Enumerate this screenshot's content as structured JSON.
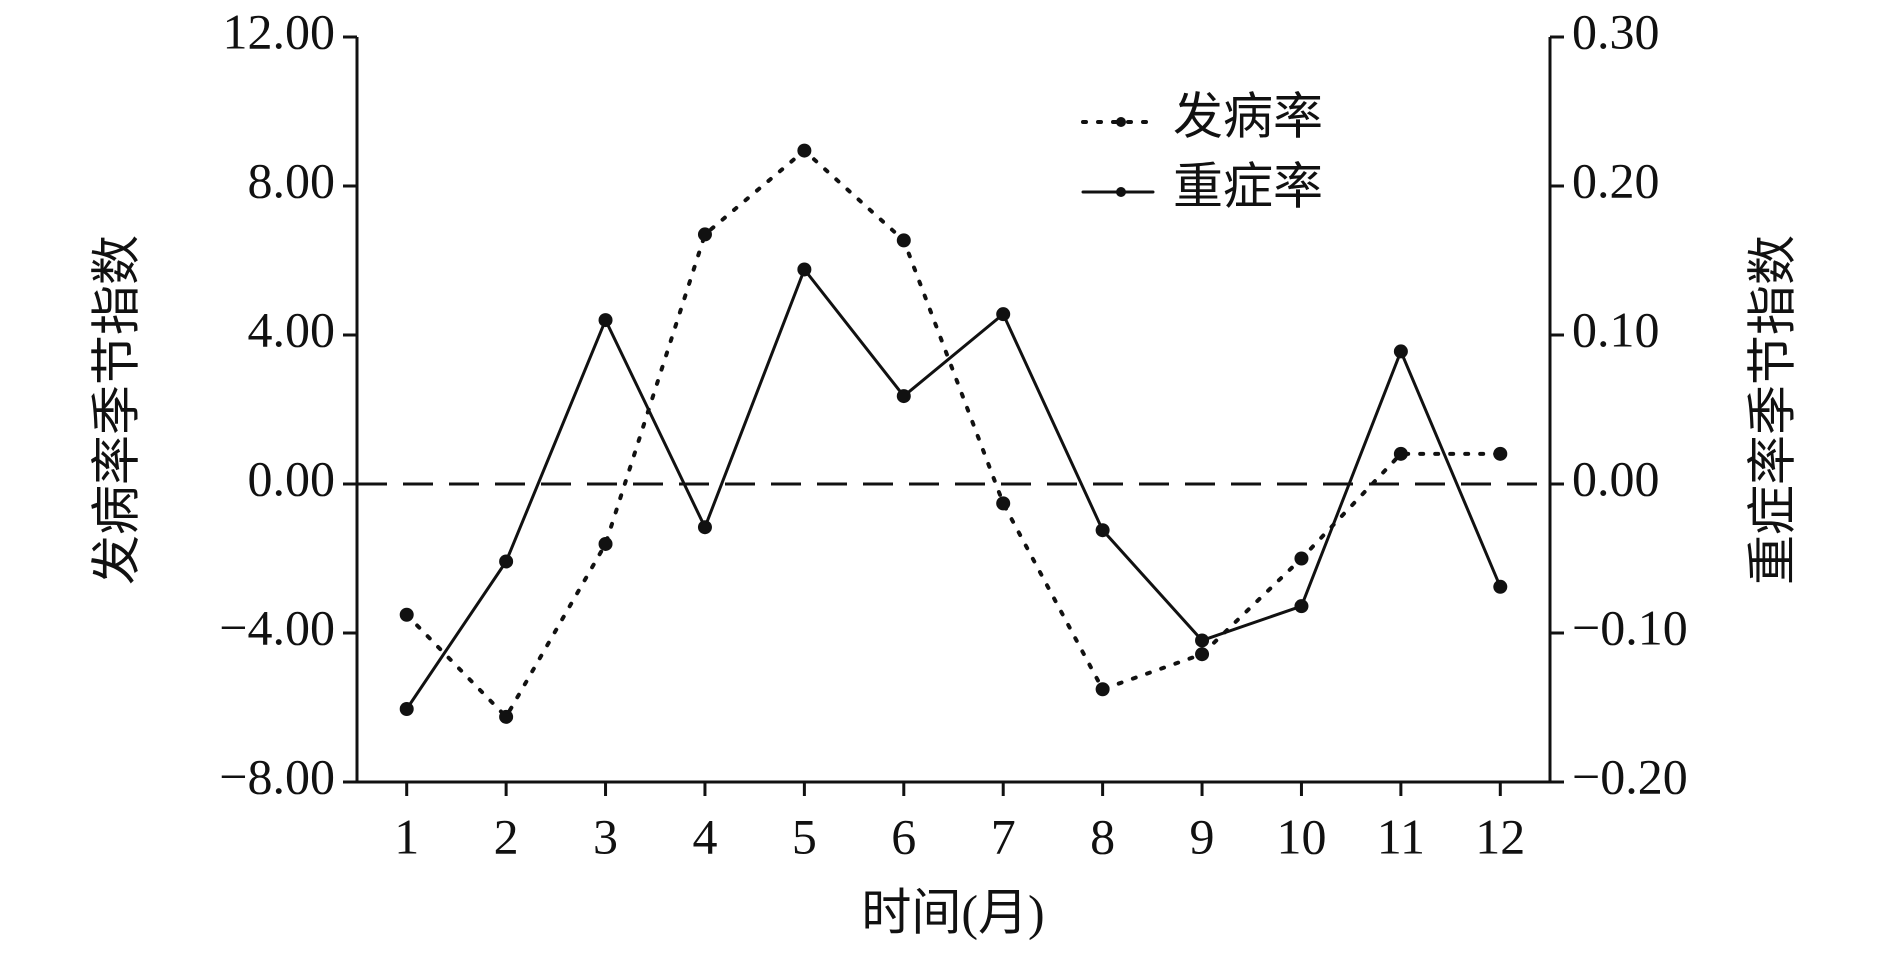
{
  "chart_data": {
    "type": "line",
    "xlabel": "时间(月)",
    "ylabel": "发病率季节指数",
    "y2label": "重症率季节指数",
    "categories": [
      "1",
      "2",
      "3",
      "4",
      "5",
      "6",
      "7",
      "8",
      "9",
      "10",
      "11",
      "12"
    ],
    "ylim": [
      -8,
      12
    ],
    "yticks": [
      {
        "value": -8,
        "label": "−8.00"
      },
      {
        "value": -4,
        "label": "−4.00"
      },
      {
        "value": 0,
        "label": "0.00"
      },
      {
        "value": 4,
        "label": "4.00"
      },
      {
        "value": 8,
        "label": "8.00"
      },
      {
        "value": 12,
        "label": "12.00"
      }
    ],
    "y2lim": [
      -0.2,
      0.3
    ],
    "y2ticks": [
      {
        "value": -0.2,
        "label": "−0.20"
      },
      {
        "value": -0.1,
        "label": "−0.10"
      },
      {
        "value": 0,
        "label": "0.00"
      },
      {
        "value": 0.1,
        "label": "0.10"
      },
      {
        "value": 0.2,
        "label": "0.20"
      },
      {
        "value": 0.3,
        "label": "0.30"
      }
    ],
    "reference_line": 0,
    "legend": "upper right",
    "series": [
      {
        "name": "发病率",
        "color": "#111111",
        "style": "dotted",
        "values": [
          -3.51,
          -6.25,
          -1.61,
          6.7,
          8.95,
          6.54,
          -0.52,
          -5.51,
          -4.57,
          -2.0,
          0.81,
          0.81
        ]
      },
      {
        "name": "重症率",
        "color": "#111111",
        "style": "solid",
        "axis": "y2",
        "values": [
          -0.151,
          -0.052,
          0.11,
          -0.029,
          0.144,
          0.059,
          0.114,
          -0.031,
          -0.105,
          -0.082,
          0.089,
          -0.069
        ]
      }
    ]
  }
}
